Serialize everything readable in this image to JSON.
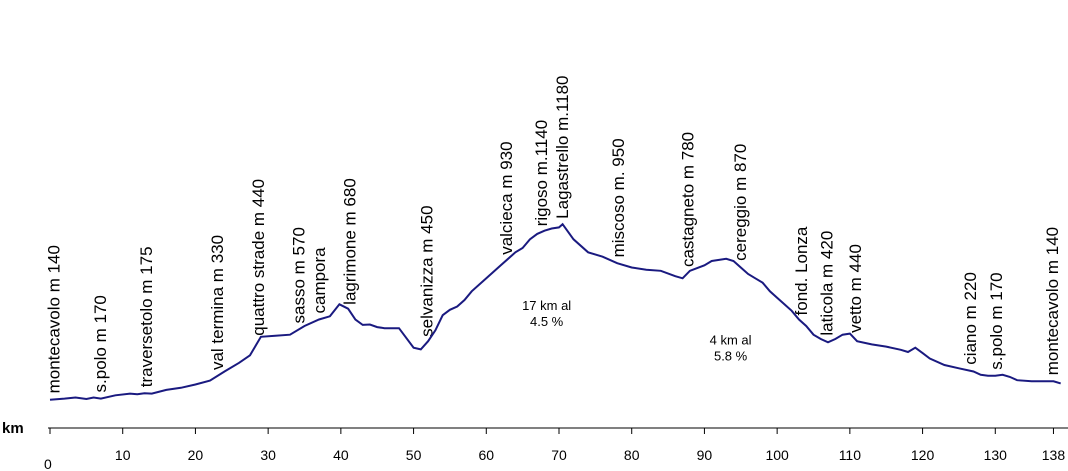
{
  "chart_data": {
    "type": "line",
    "xlabel": "km",
    "ylabel": "",
    "xlim": [
      0,
      140
    ],
    "ylim": [
      0,
      1200
    ],
    "grid": false,
    "line_color": "#1a1a80",
    "x_ticks": [
      0,
      10,
      20,
      30,
      40,
      50,
      60,
      70,
      80,
      90,
      100,
      110,
      120,
      130,
      138
    ],
    "series": [
      {
        "values": [
          [
            0,
            140
          ],
          [
            2,
            145
          ],
          [
            3.5,
            150
          ],
          [
            5,
            143
          ],
          [
            6,
            150
          ],
          [
            7,
            145
          ],
          [
            9,
            160
          ],
          [
            11,
            168
          ],
          [
            12,
            165
          ],
          [
            13,
            170
          ],
          [
            14,
            168
          ],
          [
            16,
            185
          ],
          [
            18,
            195
          ],
          [
            20,
            210
          ],
          [
            22,
            228
          ],
          [
            24,
            270
          ],
          [
            26,
            310
          ],
          [
            27.5,
            345
          ],
          [
            29,
            430
          ],
          [
            31,
            435
          ],
          [
            33,
            440
          ],
          [
            35,
            480
          ],
          [
            37,
            510
          ],
          [
            38.5,
            525
          ],
          [
            39.8,
            580
          ],
          [
            41,
            560
          ],
          [
            42,
            510
          ],
          [
            43,
            485
          ],
          [
            44,
            487
          ],
          [
            45,
            475
          ],
          [
            46,
            470
          ],
          [
            47,
            470
          ],
          [
            48,
            470
          ],
          [
            50,
            380
          ],
          [
            51,
            372
          ],
          [
            52,
            410
          ],
          [
            53,
            460
          ],
          [
            54,
            530
          ],
          [
            55,
            555
          ],
          [
            56,
            570
          ],
          [
            57,
            600
          ],
          [
            58,
            640
          ],
          [
            60,
            700
          ],
          [
            62,
            760
          ],
          [
            64,
            820
          ],
          [
            65,
            840
          ],
          [
            66,
            880
          ],
          [
            67,
            905
          ],
          [
            68,
            920
          ],
          [
            69,
            930
          ],
          [
            70,
            935
          ],
          [
            70.5,
            950
          ],
          [
            72,
            880
          ],
          [
            74,
            820
          ],
          [
            76,
            800
          ],
          [
            78,
            770
          ],
          [
            80,
            750
          ],
          [
            82,
            740
          ],
          [
            84,
            735
          ],
          [
            86,
            710
          ],
          [
            87,
            700
          ],
          [
            88,
            735
          ],
          [
            90,
            760
          ],
          [
            91,
            780
          ],
          [
            92,
            785
          ],
          [
            93,
            790
          ],
          [
            94,
            780
          ],
          [
            95,
            750
          ],
          [
            96,
            720
          ],
          [
            97,
            700
          ],
          [
            98,
            680
          ],
          [
            99,
            640
          ],
          [
            100,
            610
          ],
          [
            101,
            580
          ],
          [
            102,
            550
          ],
          [
            103,
            510
          ],
          [
            104,
            480
          ],
          [
            105,
            440
          ],
          [
            106,
            420
          ],
          [
            107,
            405
          ],
          [
            108,
            420
          ],
          [
            109,
            440
          ],
          [
            110,
            445
          ],
          [
            111,
            410
          ],
          [
            113,
            395
          ],
          [
            115,
            385
          ],
          [
            117,
            370
          ],
          [
            118,
            360
          ],
          [
            119,
            380
          ],
          [
            120,
            355
          ],
          [
            121,
            330
          ],
          [
            123,
            300
          ],
          [
            125,
            285
          ],
          [
            127,
            270
          ],
          [
            128,
            255
          ],
          [
            129,
            250
          ],
          [
            130,
            250
          ],
          [
            131,
            255
          ],
          [
            132,
            245
          ],
          [
            133,
            230
          ],
          [
            135,
            225
          ],
          [
            137,
            225
          ],
          [
            138,
            225
          ],
          [
            139,
            215
          ]
        ]
      }
    ],
    "labels": [
      {
        "text": "montecavolo m 140",
        "x": 0.5
      },
      {
        "text": "s.polo m 170",
        "x": 6.9
      },
      {
        "text": "traversetolo m 175",
        "x": 13.2
      },
      {
        "text": "val termina m 330",
        "x": 23.0
      },
      {
        "text": "quattro strade m 440",
        "x": 28.6
      },
      {
        "text": "sasso m 570",
        "x": 34.2
      },
      {
        "text": "campora",
        "x": 37.0
      },
      {
        "text": "lagrimone m 680",
        "x": 41.2
      },
      {
        "text": "selvanizza m 450",
        "x": 51.8
      },
      {
        "text": "valcieca m 930",
        "x": 62.7
      },
      {
        "text": "rigoso m.1140",
        "x": 67.5
      },
      {
        "text": "Lagastrello m.1180",
        "x": 70.4
      },
      {
        "text": "miscoso m. 950",
        "x": 78.1
      },
      {
        "text": "castagneto m 780",
        "x": 87.7
      },
      {
        "text": "cereggio m 870",
        "x": 94.9
      },
      {
        "text": "fond. Lonza",
        "x": 103.3
      },
      {
        "text": "laticola m 420",
        "x": 106.8
      },
      {
        "text": "vetto m 440",
        "x": 110.7
      },
      {
        "text": "ciano m 220",
        "x": 126.5
      },
      {
        "text": "s.polo m 170",
        "x": 130.1
      },
      {
        "text": "montecavolo m 140",
        "x": 137.8
      }
    ],
    "annotations": [
      {
        "lines": [
          "17 km al",
          "4.5 %"
        ],
        "x": 68.3,
        "y": 555
      },
      {
        "lines": [
          "4 km al",
          "5.8 %"
        ],
        "x": 93.6,
        "y": 395
      }
    ]
  }
}
